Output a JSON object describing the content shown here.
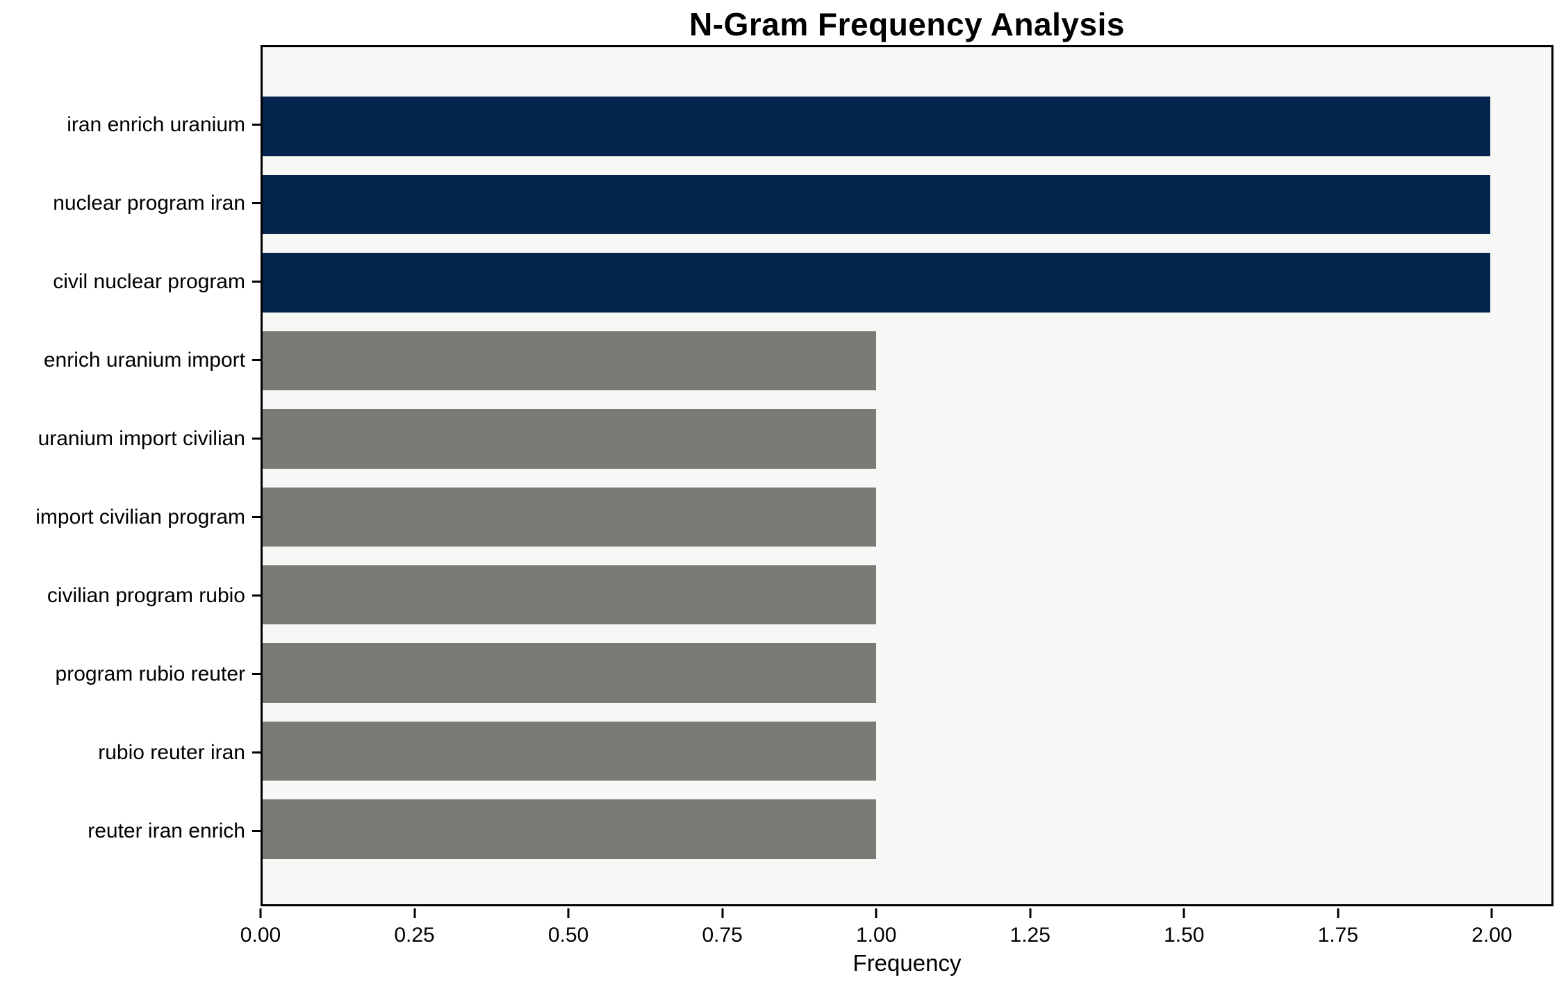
{
  "chart_data": {
    "type": "bar",
    "orientation": "horizontal",
    "title": "N-Gram Frequency Analysis",
    "xlabel": "Frequency",
    "ylabel": "",
    "categories": [
      "iran enrich uranium",
      "nuclear program iran",
      "civil nuclear program",
      "enrich uranium import",
      "uranium import civilian",
      "import civilian program",
      "civilian program rubio",
      "program rubio reuter",
      "rubio reuter iran",
      "reuter iran enrich"
    ],
    "values": [
      2,
      2,
      2,
      1,
      1,
      1,
      1,
      1,
      1,
      1
    ],
    "bar_colors": [
      "#03254e",
      "#03254e",
      "#03254e",
      "#7a7a77",
      "#7a7a77",
      "#7a7a77",
      "#7a7a77",
      "#7a7a77",
      "#7a7a77",
      "#7a7a77"
    ],
    "xlim": [
      0,
      2.1
    ],
    "xticks": [
      0.0,
      0.25,
      0.5,
      0.75,
      1.0,
      1.25,
      1.5,
      1.75,
      2.0
    ],
    "xtick_labels": [
      "0.00",
      "0.25",
      "0.50",
      "0.75",
      "1.00",
      "1.25",
      "1.50",
      "1.75",
      "2.00"
    ],
    "plot_background": "#f7f7f5",
    "axis_color": "#000000",
    "grid": false,
    "legend_position": "none"
  }
}
